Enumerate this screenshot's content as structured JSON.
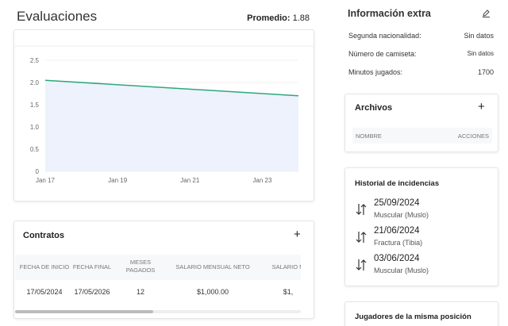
{
  "header": {
    "title": "Evaluaciones",
    "average_label": "Promedio:",
    "average": 1.88
  },
  "chart_data": {
    "type": "line",
    "x": [
      17,
      24
    ],
    "xlim": [
      17,
      24
    ],
    "xticks": [
      {
        "value": 17,
        "label": "Jan 17"
      },
      {
        "value": 19,
        "label": "Jan 19"
      },
      {
        "value": 21,
        "label": "Jan 21"
      },
      {
        "value": 23,
        "label": "Jan 23"
      }
    ],
    "ylim": [
      0,
      2.5
    ],
    "yticks": [
      0,
      0.5,
      {
        "value": 1,
        "label": "1.0"
      },
      1.5,
      {
        "value": 2,
        "label": "2.0"
      },
      2.5
    ],
    "series": [
      {
        "color": "#2ea878",
        "values": [
          2.05,
          1.7
        ]
      }
    ],
    "area_color": "#edf2fc",
    "grid": true
  },
  "contracts": {
    "title": "Contratos",
    "add": "+",
    "columns": [
      "FECHA DE INICIO",
      "FECHA FINAL",
      "MESES PAGADOS",
      "SALARIO MENSUAL NETO",
      "SALARIO M"
    ],
    "rows": [
      [
        "17/05/2024",
        "17/05/2026",
        "12",
        "$1,000.00",
        "$1,"
      ]
    ]
  },
  "extra_info": {
    "title": "Información extra",
    "rows": [
      {
        "label": "Segunda nacionalidad:",
        "value": "Sin datos"
      },
      {
        "label": "Número de camiseta:",
        "value": "Sin datos"
      },
      {
        "label": "Minutos jugados:",
        "value": "1700"
      }
    ]
  },
  "files": {
    "title": "Archivos",
    "add": "+",
    "columns": [
      "NOMBRE",
      "ACCIONES"
    ]
  },
  "incidents": {
    "title": "Historial de incidencias",
    "items": [
      {
        "date": "25/09/2024",
        "detail": "Muscular (Muslo)"
      },
      {
        "date": "21/06/2024",
        "detail": "Fractura (Tibia)"
      },
      {
        "date": "03/06/2024",
        "detail": "Muscular (Muslo)"
      }
    ]
  },
  "same_position": {
    "title": "Jugadores de la misma posición"
  }
}
